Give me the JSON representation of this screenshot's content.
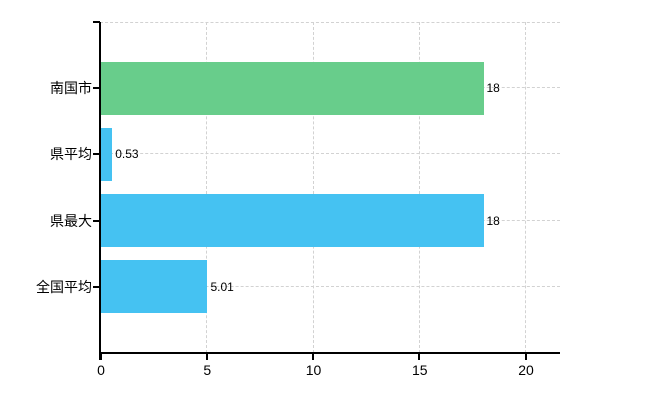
{
  "chart_data": {
    "type": "bar",
    "orientation": "horizontal",
    "title": "",
    "xlabel": "",
    "ylabel": "",
    "categories": [
      "南国市",
      "県平均",
      "県最大",
      "全国平均"
    ],
    "values": [
      18,
      0.53,
      18,
      5.01
    ],
    "value_labels": [
      "18",
      "0.53",
      "18",
      "5.01"
    ],
    "bar_colors": [
      "#68cd8b",
      "#45c2f2",
      "#45c2f2",
      "#45c2f2"
    ],
    "x_ticks": [
      0,
      5,
      10,
      15,
      20
    ],
    "x_tick_labels": [
      "0",
      "5",
      "10",
      "15",
      "20"
    ],
    "xlim": [
      0,
      21.6
    ],
    "grid": true,
    "legend": false,
    "colors": {
      "green_bar": "#68cd8b",
      "blue_bar": "#45c2f2",
      "grid": "#d2d2d2",
      "axis": "#000000",
      "text": "#000000",
      "background": "#ffffff"
    }
  }
}
